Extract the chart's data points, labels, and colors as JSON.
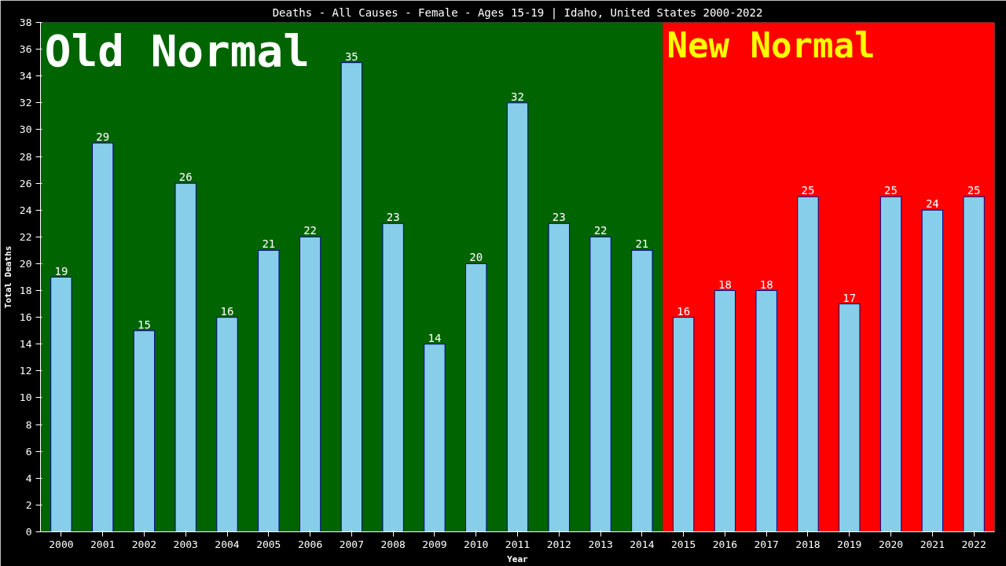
{
  "chart_data": {
    "type": "bar",
    "title": "Deaths - All Causes - Female - Ages 15-19 | Idaho, United States 2000-2022",
    "xlabel": "Year",
    "ylabel": "Total Deaths",
    "categories": [
      "2000",
      "2001",
      "2002",
      "2003",
      "2004",
      "2005",
      "2006",
      "2007",
      "2008",
      "2009",
      "2010",
      "2011",
      "2012",
      "2013",
      "2014",
      "2015",
      "2016",
      "2017",
      "2018",
      "2019",
      "2020",
      "2021",
      "2022"
    ],
    "values": [
      19,
      29,
      15,
      26,
      16,
      21,
      22,
      35,
      23,
      14,
      20,
      32,
      23,
      22,
      21,
      16,
      18,
      18,
      25,
      17,
      25,
      24,
      25
    ],
    "color": "#87ceeb",
    "ylim": [
      0,
      38
    ],
    "yticks": [
      0,
      2,
      4,
      6,
      8,
      10,
      12,
      14,
      16,
      18,
      20,
      22,
      24,
      26,
      28,
      30,
      32,
      34,
      36,
      38
    ],
    "data_labels": true,
    "grid": false,
    "bands": [
      {
        "axis": "x",
        "from": "2000",
        "to": "2014",
        "label": "Old Normal",
        "color": "#006400"
      },
      {
        "axis": "x",
        "from": "2015",
        "to": "2022",
        "label": "New Normal",
        "color": "#ff0000"
      }
    ]
  }
}
